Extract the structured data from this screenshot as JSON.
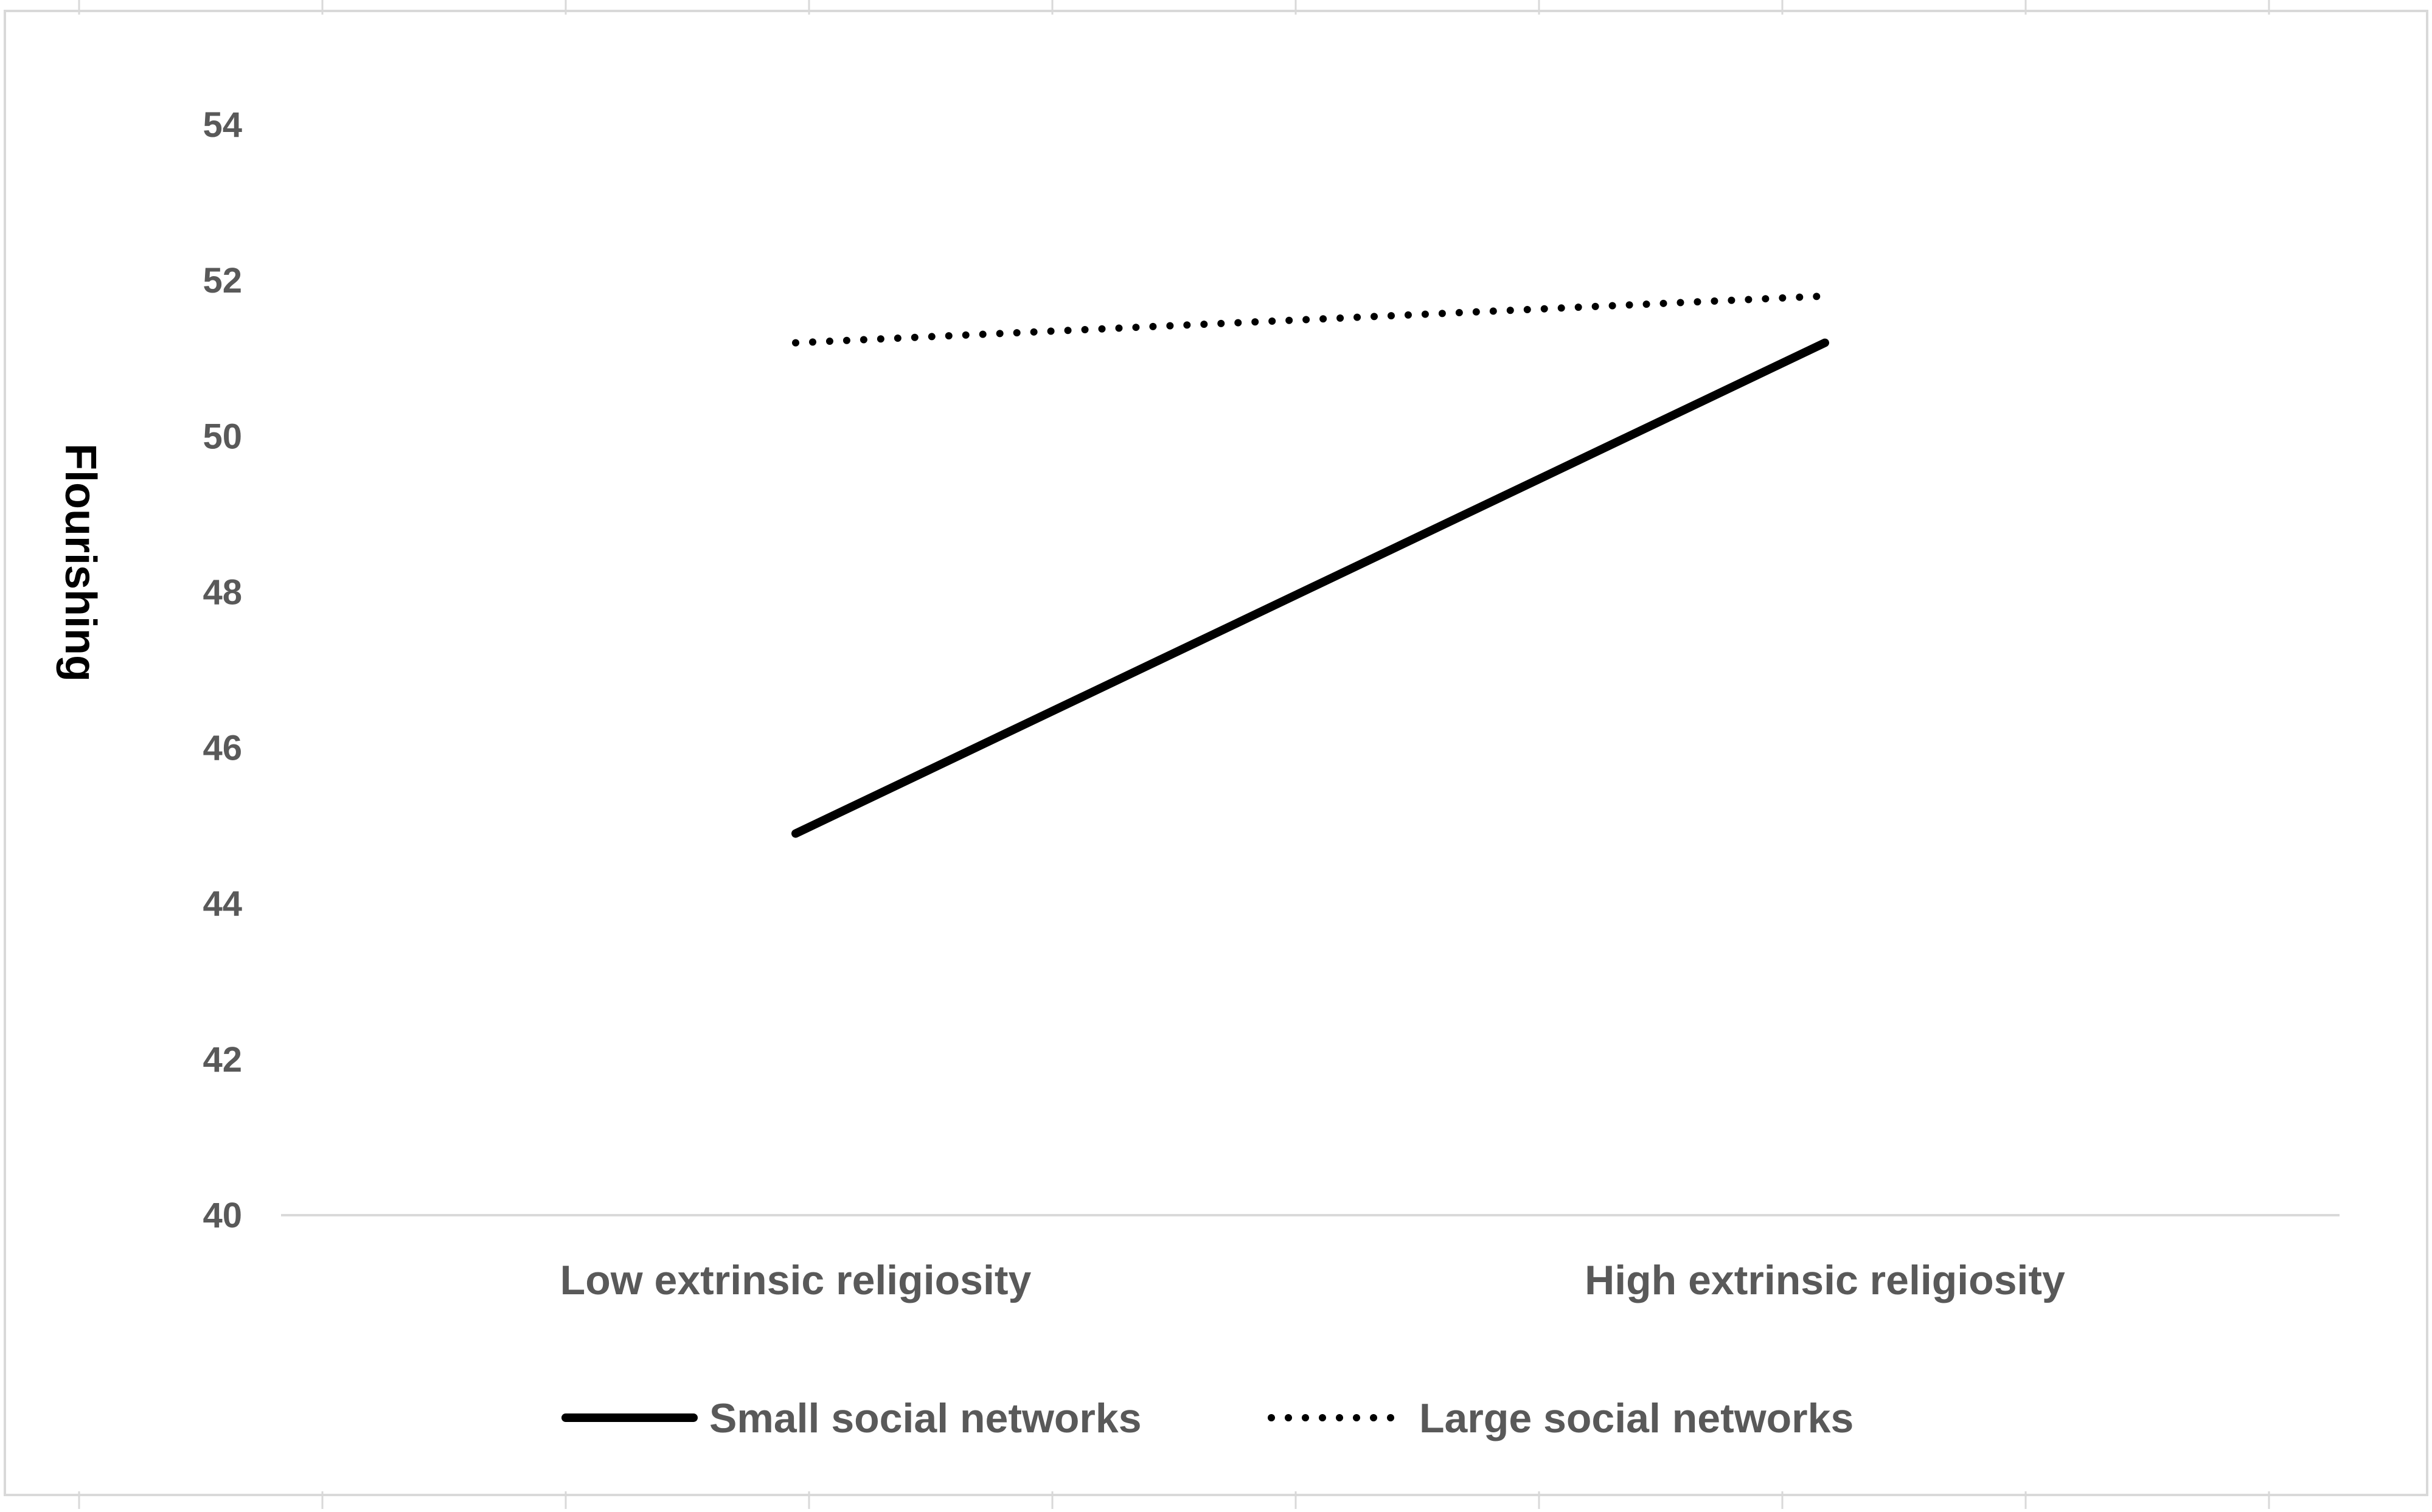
{
  "chart_data": {
    "type": "line",
    "categories": [
      "Low extrinsic religiosity",
      "High extrinsic religiosity"
    ],
    "series": [
      {
        "name": "Small social networks",
        "values": [
          44.9,
          51.2
        ],
        "style": "solid",
        "color": "#000000"
      },
      {
        "name": "Large social networks",
        "values": [
          51.2,
          51.8
        ],
        "style": "dotted",
        "color": "#000000"
      }
    ],
    "title": "",
    "xlabel": "",
    "ylabel": "Flourishing",
    "ylim": [
      40,
      54
    ],
    "yticks": [
      40,
      42,
      44,
      46,
      48,
      50,
      52,
      54
    ],
    "grid": false,
    "legend_position": "bottom"
  }
}
